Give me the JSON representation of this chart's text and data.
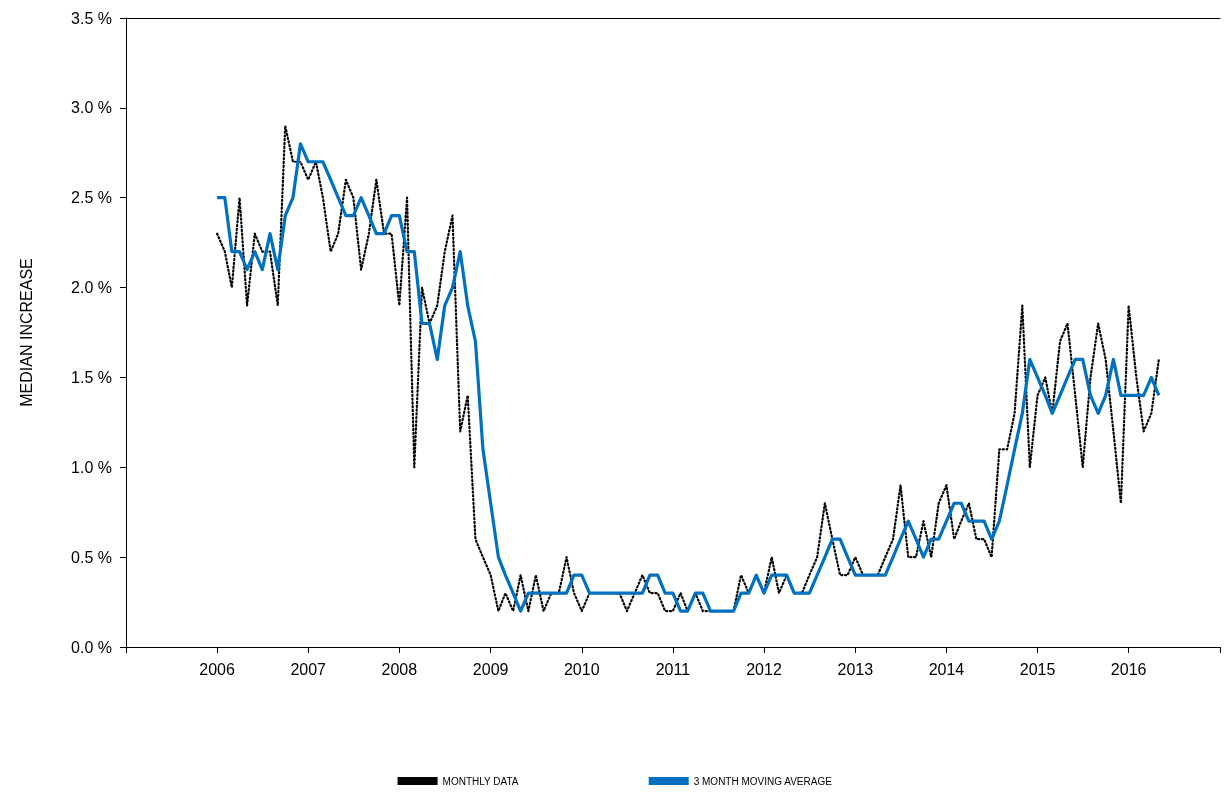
{
  "chart_data": {
    "type": "line",
    "ylabel": "MEDIAN INCREASE",
    "x": [
      "2006-01",
      "2006-02",
      "2006-03",
      "2006-04",
      "2006-05",
      "2006-06",
      "2006-07",
      "2006-08",
      "2006-09",
      "2006-10",
      "2006-11",
      "2006-12",
      "2007-01",
      "2007-02",
      "2007-03",
      "2007-04",
      "2007-05",
      "2007-06",
      "2007-07",
      "2007-08",
      "2007-09",
      "2007-10",
      "2007-11",
      "2007-12",
      "2008-01",
      "2008-02",
      "2008-03",
      "2008-04",
      "2008-05",
      "2008-06",
      "2008-07",
      "2008-08",
      "2008-09",
      "2008-10",
      "2008-11",
      "2008-12",
      "2009-01",
      "2009-02",
      "2009-03",
      "2009-04",
      "2009-05",
      "2009-06",
      "2009-07",
      "2009-08",
      "2009-09",
      "2009-10",
      "2009-11",
      "2009-12",
      "2010-01",
      "2010-02",
      "2010-03",
      "2010-04",
      "2010-05",
      "2010-06",
      "2010-07",
      "2010-08",
      "2010-09",
      "2010-10",
      "2010-11",
      "2010-12",
      "2011-01",
      "2011-02",
      "2011-03",
      "2011-04",
      "2011-05",
      "2011-06",
      "2011-07",
      "2011-08",
      "2011-09",
      "2011-10",
      "2011-11",
      "2011-12",
      "2012-01",
      "2012-02",
      "2012-03",
      "2012-04",
      "2012-05",
      "2012-06",
      "2012-07",
      "2012-08",
      "2012-09",
      "2012-10",
      "2012-11",
      "2012-12",
      "2013-01",
      "2013-02",
      "2013-03",
      "2013-04",
      "2013-05",
      "2013-06",
      "2013-07",
      "2013-08",
      "2013-09",
      "2013-10",
      "2013-11",
      "2013-12",
      "2014-01",
      "2014-02",
      "2014-03",
      "2014-04",
      "2014-05",
      "2014-06",
      "2014-07",
      "2014-08",
      "2014-09",
      "2014-10",
      "2014-11",
      "2014-12",
      "2015-01",
      "2015-02",
      "2015-03",
      "2015-04",
      "2015-05",
      "2015-06",
      "2015-07",
      "2015-08",
      "2015-09",
      "2015-10",
      "2015-11",
      "2015-12",
      "2016-01",
      "2016-02",
      "2016-03",
      "2016-04",
      "2016-05"
    ],
    "series": [
      {
        "name": "MONTHLY DATA",
        "color": "#000000",
        "line_style": "dotted",
        "values": [
          2.3,
          2.2,
          2.0,
          2.5,
          1.9,
          2.3,
          2.2,
          2.2,
          1.9,
          2.9,
          2.7,
          2.7,
          2.6,
          2.7,
          2.5,
          2.2,
          2.3,
          2.6,
          2.5,
          2.1,
          2.3,
          2.6,
          2.3,
          2.3,
          1.9,
          2.5,
          1.0,
          2.0,
          1.8,
          1.9,
          2.2,
          2.4,
          1.2,
          1.4,
          0.6,
          0.5,
          0.4,
          0.2,
          0.3,
          0.2,
          0.4,
          0.2,
          0.4,
          0.2,
          0.3,
          0.3,
          0.5,
          0.3,
          0.2,
          0.3,
          0.3,
          null,
          0.3,
          0.3,
          0.2,
          0.3,
          0.4,
          0.3,
          0.3,
          0.2,
          0.2,
          0.3,
          0.2,
          0.3,
          0.2,
          0.2,
          null,
          0.2,
          0.2,
          0.4,
          0.3,
          0.4,
          0.3,
          0.5,
          0.3,
          0.4,
          0.3,
          0.3,
          0.4,
          0.5,
          0.8,
          0.6,
          0.4,
          0.4,
          0.5,
          0.4,
          0.4,
          0.4,
          0.5,
          0.6,
          0.9,
          0.5,
          0.5,
          0.7,
          0.5,
          0.8,
          0.9,
          0.6,
          0.7,
          0.8,
          0.6,
          0.6,
          0.5,
          1.1,
          1.1,
          1.3,
          1.9,
          1.0,
          1.4,
          1.5,
          1.3,
          1.7,
          1.8,
          1.4,
          1.0,
          1.5,
          1.8,
          1.6,
          1.2,
          0.8,
          1.9,
          1.5,
          1.2,
          1.3,
          1.6
        ]
      },
      {
        "name": "3 MONTH MOVING AVERAGE",
        "color": "#0070c0",
        "line_style": "solid",
        "values": [
          2.5,
          2.5,
          2.2,
          2.2,
          2.1,
          2.2,
          2.1,
          2.3,
          2.1,
          2.4,
          2.5,
          2.8,
          2.7,
          2.7,
          2.7,
          2.6,
          2.5,
          2.4,
          2.4,
          2.5,
          2.4,
          2.3,
          2.3,
          2.4,
          2.4,
          2.2,
          2.2,
          1.8,
          1.8,
          1.6,
          1.9,
          2.0,
          2.2,
          1.9,
          1.7,
          1.1,
          0.8,
          0.5,
          0.4,
          0.3,
          0.2,
          0.3,
          0.3,
          0.3,
          0.3,
          0.3,
          0.3,
          0.4,
          0.4,
          0.3,
          0.3,
          0.3,
          0.3,
          0.3,
          0.3,
          0.3,
          0.3,
          0.4,
          0.4,
          0.3,
          0.3,
          0.2,
          0.2,
          0.3,
          0.3,
          0.2,
          0.2,
          0.2,
          0.2,
          0.3,
          0.3,
          0.4,
          0.3,
          0.4,
          0.4,
          0.4,
          0.3,
          0.3,
          0.3,
          0.4,
          0.5,
          0.6,
          0.6,
          0.5,
          0.4,
          0.4,
          0.4,
          0.4,
          0.4,
          0.5,
          0.6,
          0.7,
          0.6,
          0.5,
          0.6,
          0.6,
          0.7,
          0.8,
          0.8,
          0.7,
          0.7,
          0.7,
          0.6,
          0.7,
          0.9,
          1.1,
          1.3,
          1.6,
          1.5,
          1.4,
          1.3,
          1.4,
          1.5,
          1.6,
          1.6,
          1.4,
          1.3,
          1.4,
          1.6,
          1.4,
          1.4,
          1.4,
          1.4,
          1.5,
          1.4
        ]
      }
    ],
    "xlim": [
      "2005",
      "2017"
    ],
    "xticks": [
      {
        "value": "2005",
        "label": null
      },
      "2006",
      "2007",
      "2008",
      "2009",
      "2010",
      "2011",
      "2012",
      "2013",
      "2014",
      "2015",
      "2016",
      {
        "value": "2017",
        "label": null
      }
    ],
    "ylim": [
      0,
      3.5
    ],
    "yticks": [
      {
        "value": 0,
        "label": "0.0 %"
      },
      {
        "value": 0.5,
        "label": "0.5 %"
      },
      {
        "value": 1,
        "label": "1.0 %"
      },
      {
        "value": 1.5,
        "label": "1.5 %"
      },
      {
        "value": 2,
        "label": "2.0 %"
      },
      {
        "value": 2.5,
        "label": "2.5 %"
      },
      {
        "value": 3,
        "label": "3.0 %"
      },
      {
        "value": 3.5,
        "label": "3.5 %"
      }
    ],
    "grid": false,
    "legend": "bottom",
    "marker": "none"
  }
}
